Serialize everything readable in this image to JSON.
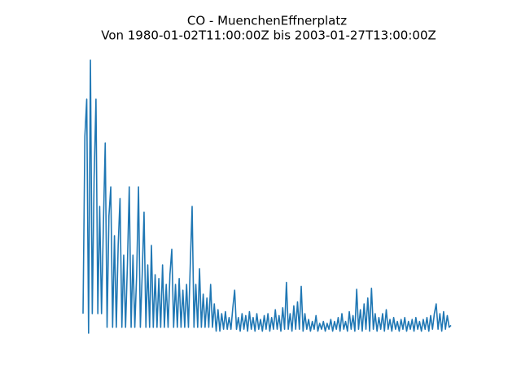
{
  "chart_data": {
    "type": "line",
    "title": "CO - MuenchenEffnerplatz",
    "subtitle": "Von 1980-01-02T11:00:00Z bis 2003-01-27T13:00:00Z",
    "color": "#1f77b4",
    "ylim": [
      0,
      14
    ],
    "values": [
      1.0,
      10.1,
      12,
      0,
      14,
      1.0,
      8,
      12,
      1.0,
      6.5,
      1.0,
      5.5,
      9.75,
      0.3,
      6,
      7.5,
      0.3,
      5,
      0.3,
      4.5,
      6.9,
      0.3,
      4,
      0.3,
      3.5,
      7.5,
      0.3,
      4,
      0.3,
      3,
      7.5,
      0.3,
      3,
      6.2,
      0.3,
      3.5,
      0.3,
      4.5,
      0.3,
      3,
      0.3,
      2.8,
      0.3,
      3.5,
      0.3,
      2.5,
      0.3,
      3,
      4.3,
      0.3,
      2.5,
      0.3,
      2.8,
      0.3,
      2.2,
      0.3,
      2.5,
      0.3,
      3.5,
      6.5,
      0.3,
      2.5,
      0.3,
      3.3,
      0.3,
      2,
      0.3,
      1.8,
      0.3,
      2.5,
      0.3,
      1.5,
      0.1,
      1.2,
      0.1,
      1.0,
      0.2,
      1.1,
      0.2,
      0.8,
      0.2,
      1.3,
      2.2,
      0.2,
      0.8,
      0.1,
      1.0,
      0.2,
      0.9,
      0.1,
      1.1,
      0.2,
      0.8,
      0.1,
      1.0,
      0.2,
      0.7,
      0.1,
      0.9,
      0.2,
      1.0,
      0.1,
      0.8,
      0.2,
      1.2,
      0.2,
      0.9,
      0.1,
      1.3,
      0.2,
      2.6,
      0.2,
      1.0,
      0.1,
      1.4,
      0.2,
      1.6,
      0.2,
      2.4,
      0.1,
      1.0,
      0.2,
      0.7,
      0.1,
      0.6,
      0.2,
      0.9,
      0.1,
      0.5,
      0.2,
      0.6,
      0.1,
      0.5,
      0.2,
      0.7,
      0.1,
      0.6,
      0.2,
      0.8,
      0.1,
      1.0,
      0.2,
      0.6,
      0.1,
      1.1,
      0.2,
      0.9,
      0.1,
      2.25,
      0.2,
      1.2,
      0.1,
      1.5,
      0.2,
      1.8,
      0.1,
      2.3,
      0.2,
      1.0,
      0.1,
      0.8,
      0.2,
      1.0,
      0.1,
      1.2,
      0.2,
      0.7,
      0.1,
      0.8,
      0.2,
      0.6,
      0.1,
      0.7,
      0.2,
      0.8,
      0.1,
      0.6,
      0.2,
      0.7,
      0.1,
      0.8,
      0.2,
      0.6,
      0.1,
      0.7,
      0.2,
      0.8,
      0.1,
      0.9,
      0.2,
      1.0,
      1.5,
      0.2,
      1.0,
      0.1,
      1.1,
      0.2,
      0.9,
      0.3,
      0.4
    ]
  }
}
